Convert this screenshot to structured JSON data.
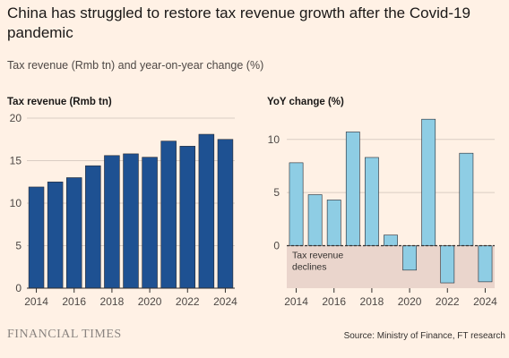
{
  "title": "China has struggled to restore tax revenue growth after the Covid-19 pandemic",
  "subtitle": "Tax revenue (Rmb tn) and year-on-year change (%)",
  "footer": {
    "logo": "FINANCIAL TIMES",
    "source": "Source: Ministry of Finance, FT research"
  },
  "colors": {
    "bar_dark": "#1e5192",
    "bar_light": "#8ecde4",
    "bar_outline": "#262a33",
    "grid": "#d9cdc3",
    "shade": "#ead5cc",
    "baseline": "#33302e"
  },
  "chart_data": [
    {
      "type": "bar",
      "title": "Tax revenue (Rmb tn)",
      "x": [
        2014,
        2015,
        2016,
        2017,
        2018,
        2019,
        2020,
        2021,
        2022,
        2023,
        2024
      ],
      "values": [
        11.9,
        12.5,
        13.0,
        14.4,
        15.6,
        15.8,
        15.4,
        17.3,
        16.7,
        18.1,
        17.5
      ],
      "xticks": [
        "2014",
        "2016",
        "2018",
        "2020",
        "2022",
        "2024"
      ],
      "yticks": [
        0,
        5,
        10,
        15,
        20
      ],
      "ylim": [
        0,
        20
      ],
      "grid": true
    },
    {
      "type": "bar",
      "title": "YoY change (%)",
      "x": [
        2014,
        2015,
        2016,
        2017,
        2018,
        2019,
        2020,
        2021,
        2022,
        2023,
        2024
      ],
      "values": [
        7.8,
        4.8,
        4.3,
        10.7,
        8.3,
        1.0,
        -2.3,
        11.9,
        -3.5,
        8.7,
        -3.4
      ],
      "xticks": [
        "2014",
        "2016",
        "2018",
        "2020",
        "2022",
        "2024"
      ],
      "yticks": [
        0,
        5,
        10
      ],
      "ylim": [
        -4,
        12
      ],
      "grid": true,
      "annotation": "Tax revenue declines"
    }
  ]
}
